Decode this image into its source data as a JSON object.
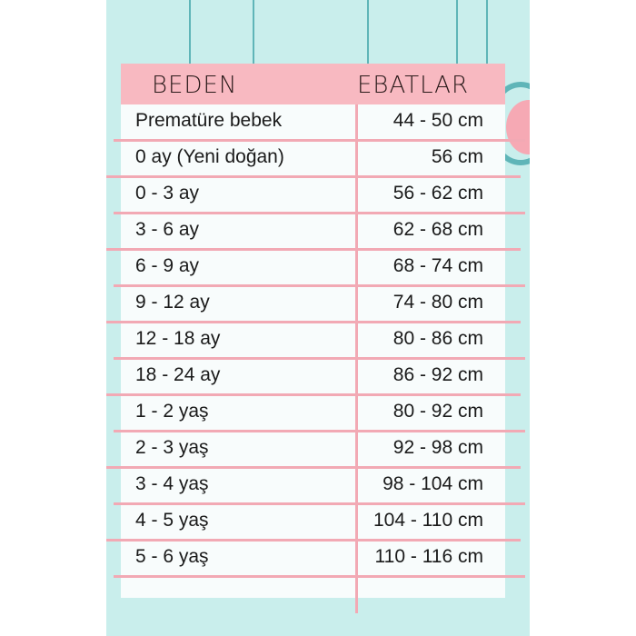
{
  "colors": {
    "background": "#c9eeec",
    "header": "#f8b9c1",
    "lines": "#f2a9b4",
    "table": "#f8fcfc"
  },
  "header": {
    "size_label": "BEDEN",
    "dimension_label": "EBATLAR"
  },
  "rows": [
    {
      "size": "Prematüre bebek",
      "dimension": "44 - 50 cm"
    },
    {
      "size": "0 ay (Yeni doğan)",
      "dimension": "56 cm"
    },
    {
      "size": "0 - 3 ay",
      "dimension": "56 - 62 cm"
    },
    {
      "size": "3 - 6 ay",
      "dimension": "62 - 68 cm"
    },
    {
      "size": "6 - 9 ay",
      "dimension": "68 - 74 cm"
    },
    {
      "size": "9 - 12 ay",
      "dimension": "74 - 80 cm"
    },
    {
      "size": "12 - 18 ay",
      "dimension": "80 - 86 cm"
    },
    {
      "size": "18 - 24 ay",
      "dimension": "86 - 92 cm"
    },
    {
      "size": "1 - 2 yaş",
      "dimension": "80 - 92 cm"
    },
    {
      "size": "2 - 3 yaş",
      "dimension": "92 - 98 cm"
    },
    {
      "size": "3 - 4 yaş",
      "dimension": "98 - 104 cm"
    },
    {
      "size": "4 - 5 yaş",
      "dimension": "104 - 110 cm"
    },
    {
      "size": "5 - 6 yaş",
      "dimension": "110 - 116 cm"
    }
  ]
}
